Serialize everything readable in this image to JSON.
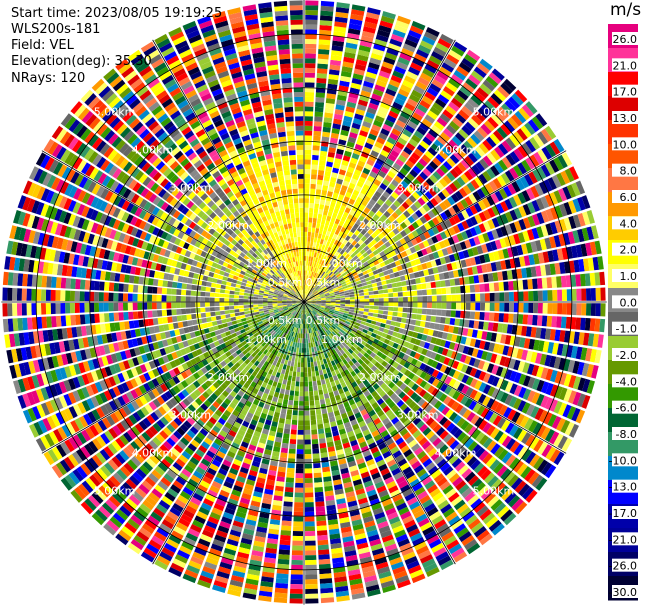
{
  "header": {
    "start_time": "Start time: 2023/08/05 19:19:25",
    "instrument": "WLS200s-181",
    "field": "Field: VEL",
    "elevation": "Elevation(deg): 35.30",
    "nrays": "NRays: 120"
  },
  "chart_data": {
    "type": "heatmap",
    "projection": "polar-ppi",
    "field": "VEL",
    "nrays": 120,
    "range_rings_km": [
      1.0,
      2.0,
      3.0,
      4.0,
      5.0
    ],
    "ring_labels": {
      "0.5": "0.5km",
      "1.0": "1.00km",
      "2.0": "2.00km",
      "3.0": "3.00km",
      "4.0": "4.00km",
      "5.0": "5.00km"
    },
    "spoke_angles_deg": [
      0,
      30,
      60,
      90,
      120,
      150,
      180,
      210,
      240,
      270,
      300,
      330
    ],
    "colorbar": {
      "title": "m/s",
      "ticks": [
        "26.0",
        "21.0",
        "17.0",
        "13.0",
        "10.0",
        "8.0",
        "6.0",
        "4.0",
        "2.0",
        "1.0",
        "0.0",
        "-1.0",
        "-2.0",
        "-4.0",
        "-6.0",
        "-8.0",
        "-10.0",
        "-13.0",
        "-17.0",
        "-21.0",
        "-26.0",
        "-30.0"
      ],
      "colors": [
        "#e6007e",
        "#ff3399",
        "#ff0000",
        "#dd0000",
        "#ff3300",
        "#ff5500",
        "#ff7744",
        "#ff9900",
        "#ffcc00",
        "#ffff00",
        "#ffff66",
        "#888888",
        "#666666",
        "#99cc33",
        "#669900",
        "#339900",
        "#006633",
        "#339966",
        "#0088cc",
        "#0000ff",
        "#0000aa",
        "#000099",
        "#000066",
        "#000033"
      ]
    }
  }
}
